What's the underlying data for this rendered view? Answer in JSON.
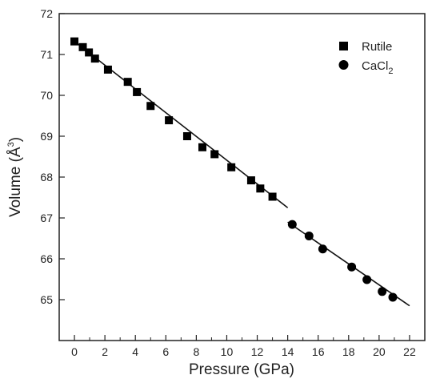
{
  "chart_data": {
    "type": "scatter",
    "xlabel": "Pressure (GPa)",
    "ylabel_text": "Volume (Å",
    "ylabel_sup": "3",
    "ylabel_close": ")",
    "xlim": [
      -1,
      23
    ],
    "ylim": [
      64,
      72
    ],
    "xticks": [
      0,
      2,
      4,
      6,
      8,
      10,
      12,
      14,
      16,
      18,
      20,
      22
    ],
    "yticks": [
      65,
      66,
      67,
      68,
      69,
      70,
      71,
      72
    ],
    "legend_position": "top-right",
    "series": [
      {
        "name": "Rutile",
        "marker": "square",
        "color": "#000000",
        "x": [
          0.0,
          0.55,
          0.95,
          1.35,
          2.2,
          3.5,
          4.1,
          5.0,
          6.2,
          7.4,
          8.4,
          9.2,
          10.3,
          11.6,
          12.2,
          13.0
        ],
        "y": [
          71.32,
          71.18,
          71.05,
          70.9,
          70.63,
          70.33,
          70.08,
          69.74,
          69.39,
          69.0,
          68.73,
          68.56,
          68.24,
          67.92,
          67.72,
          67.52
        ]
      },
      {
        "name_main": "CaCl",
        "name_sub": "2",
        "marker": "circle",
        "color": "#000000",
        "x": [
          14.3,
          15.4,
          16.3,
          18.2,
          19.2,
          20.2,
          20.9
        ],
        "y": [
          66.84,
          66.56,
          66.24,
          65.8,
          65.49,
          65.2,
          65.06
        ]
      }
    ],
    "fit_lines": [
      {
        "x": [
          0.0,
          14.0
        ],
        "y": [
          71.32,
          67.25
        ]
      },
      {
        "x": [
          14.0,
          22.0
        ],
        "y": [
          66.9,
          64.85
        ]
      }
    ]
  }
}
